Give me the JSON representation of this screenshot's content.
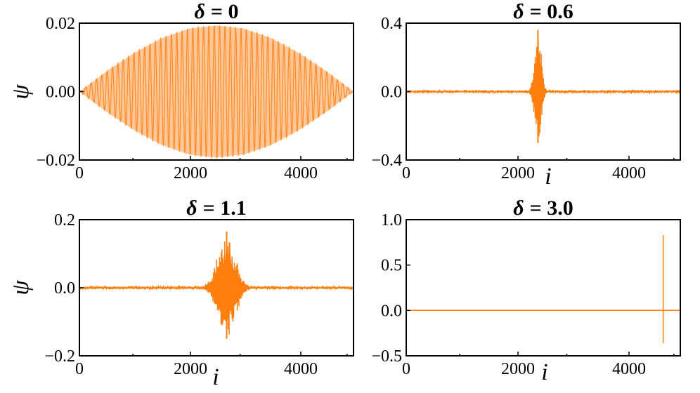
{
  "colors": {
    "series": "#ff7f0e",
    "envelope": "#ffc79a"
  },
  "chart_data": [
    {
      "type": "line",
      "title_prefix": "δ",
      "title_value": "= 0",
      "xlabel": "",
      "ylabel": "ψ",
      "xlim": [
        0,
        5120
      ],
      "ylim": [
        -0.02,
        0.02
      ],
      "xticks": [
        "0",
        "2000",
        "4000"
      ],
      "yticks": [
        "−0.02",
        "0.00",
        "0.02"
      ],
      "signal": {
        "kind": "extended",
        "amplitude": 0.0193,
        "envelope": "sine over full range",
        "oscillation_period_i": 100
      },
      "series": [
        {
          "x": [
            0,
            512,
            1024,
            1536,
            2048,
            2560,
            3072,
            3584,
            4096,
            4608,
            5120
          ],
          "y_upper": [
            0,
            0.006,
            0.0113,
            0.0156,
            0.0184,
            0.0193,
            0.0184,
            0.0156,
            0.0113,
            0.006,
            0
          ],
          "y_lower": [
            0,
            -0.006,
            -0.0113,
            -0.0156,
            -0.0184,
            -0.0193,
            -0.0184,
            -0.0156,
            -0.0113,
            -0.006,
            0
          ]
        }
      ]
    },
    {
      "type": "line",
      "title_prefix": "δ",
      "title_value": "= 0.6",
      "xlabel": "i",
      "ylabel": "",
      "xlim": [
        0,
        5120
      ],
      "ylim": [
        -0.4,
        0.4
      ],
      "xticks": [
        "0",
        "2000",
        "4000"
      ],
      "yticks": [
        "−0.4",
        "0.0",
        "0.4"
      ],
      "signal": {
        "kind": "localized",
        "center_i": 2460,
        "peak_max": 0.36,
        "peak_min": -0.3,
        "spread_i": 150,
        "noise": 0.004
      }
    },
    {
      "type": "line",
      "title_prefix": "δ",
      "title_value": "= 1.1",
      "xlabel": "i",
      "ylabel": "ψ",
      "xlim": [
        0,
        5120
      ],
      "ylim": [
        -0.2,
        0.2
      ],
      "xticks": [
        "0",
        "2000",
        "4000"
      ],
      "yticks": [
        "−0.2",
        "0.0",
        "0.2"
      ],
      "signal": {
        "kind": "localized",
        "center_i": 2750,
        "peak_max": 0.165,
        "peak_min": -0.15,
        "spread_i": 400,
        "noise": 0.003
      }
    },
    {
      "type": "line",
      "title_prefix": "δ",
      "title_value": "= 3.0",
      "xlabel": "i",
      "ylabel": "",
      "xlim": [
        0,
        5120
      ],
      "ylim": [
        -0.5,
        1.0
      ],
      "xticks": [
        "0",
        "2000",
        "4000"
      ],
      "yticks": [
        "−0.5",
        "0.0",
        "0.5",
        "1.0"
      ],
      "signal": {
        "kind": "spike",
        "center_i": 4800,
        "peak_max": 0.83,
        "peak_min": -0.36,
        "noise": 0
      }
    }
  ]
}
